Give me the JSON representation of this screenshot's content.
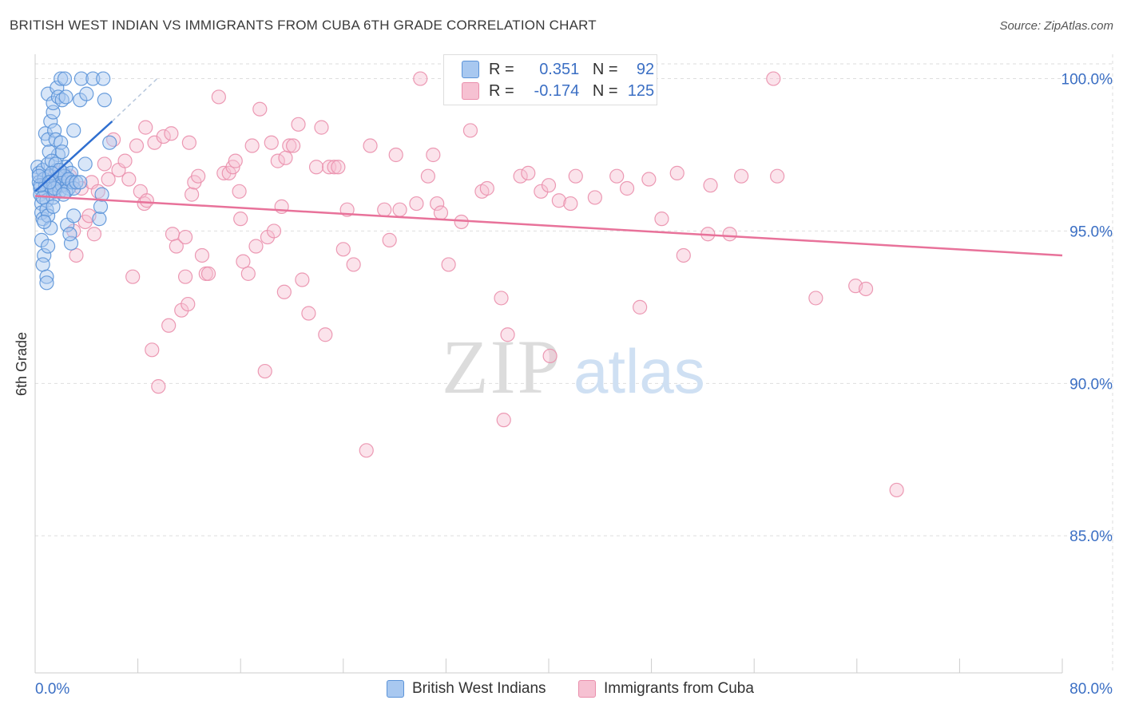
{
  "title": "BRITISH WEST INDIAN VS IMMIGRANTS FROM CUBA 6TH GRADE CORRELATION CHART",
  "source": "Source: ZipAtlas.com",
  "watermark": {
    "zip": "ZIP",
    "atlas": "atlas"
  },
  "colors": {
    "blue_fill": "#a8c8f0",
    "blue_stroke": "#5b93d8",
    "blue_line": "#2f6fd0",
    "pink_fill": "#f6c1d2",
    "pink_stroke": "#ea8fac",
    "pink_line": "#e8729a",
    "axis_label": "#3b6fc4",
    "grid": "#dedede"
  },
  "legend": {
    "rows": [
      {
        "r_label": "R =",
        "r_value": "0.351",
        "n_label": "N =",
        "n_value": "92",
        "series": "blue"
      },
      {
        "r_label": "R =",
        "r_value": "-0.174",
        "n_label": "N =",
        "n_value": "125",
        "series": "pink"
      }
    ]
  },
  "chart_data": {
    "type": "scatter",
    "title": "BRITISH WEST INDIAN VS IMMIGRANTS FROM CUBA 6TH GRADE CORRELATION CHART",
    "xlabel": "",
    "ylabel": "6th Grade",
    "xlim": [
      0,
      80
    ],
    "ylim": [
      80.5,
      100.8
    ],
    "x_tick_labels": [
      "0.0%",
      "80.0%"
    ],
    "y_ticks": [
      85,
      90,
      95,
      100
    ],
    "y_tick_labels": [
      "85.0%",
      "90.0%",
      "95.0%",
      "100.0%"
    ],
    "grid": true,
    "legend_position": "top-center",
    "series": [
      {
        "name": "British West Indians",
        "color": "blue",
        "r": 0.351,
        "n": 92,
        "trend": {
          "x": [
            0,
            6
          ],
          "y": [
            96.3,
            98.6
          ],
          "dashed_extension": {
            "x": [
              6,
              9.5
            ],
            "y": [
              98.6,
              100
            ]
          }
        },
        "points": [
          [
            0.2,
            97.1
          ],
          [
            0.3,
            96.9
          ],
          [
            0.3,
            96.6
          ],
          [
            0.4,
            96.4
          ],
          [
            0.4,
            96.2
          ],
          [
            0.5,
            95.9
          ],
          [
            0.5,
            95.6
          ],
          [
            0.6,
            95.4
          ],
          [
            0.6,
            97.0
          ],
          [
            0.7,
            96.7
          ],
          [
            0.8,
            96.5
          ],
          [
            0.8,
            96.3
          ],
          [
            0.9,
            96.0
          ],
          [
            0.9,
            95.7
          ],
          [
            1.0,
            95.5
          ],
          [
            1.0,
            97.2
          ],
          [
            1.1,
            96.8
          ],
          [
            1.2,
            96.6
          ],
          [
            1.3,
            96.4
          ],
          [
            1.4,
            96.1
          ],
          [
            0.5,
            94.7
          ],
          [
            0.7,
            94.2
          ],
          [
            0.6,
            93.9
          ],
          [
            0.9,
            93.5
          ],
          [
            0.9,
            93.3
          ],
          [
            1.0,
            94.5
          ],
          [
            1.2,
            95.1
          ],
          [
            1.4,
            95.8
          ],
          [
            1.5,
            96.3
          ],
          [
            1.6,
            96.7
          ],
          [
            1.7,
            97.0
          ],
          [
            1.8,
            96.5
          ],
          [
            1.9,
            96.3
          ],
          [
            2.0,
            96.8
          ],
          [
            2.1,
            96.5
          ],
          [
            2.2,
            96.9
          ],
          [
            2.4,
            97.1
          ],
          [
            2.5,
            96.6
          ],
          [
            2.6,
            96.4
          ],
          [
            2.8,
            96.9
          ],
          [
            0.8,
            98.2
          ],
          [
            1.0,
            98.0
          ],
          [
            1.2,
            98.6
          ],
          [
            1.4,
            98.9
          ],
          [
            1.5,
            98.3
          ],
          [
            1.6,
            98.0
          ],
          [
            1.8,
            97.5
          ],
          [
            2.0,
            97.9
          ],
          [
            2.1,
            97.6
          ],
          [
            2.3,
            96.8
          ],
          [
            1.1,
            97.6
          ],
          [
            1.3,
            97.3
          ],
          [
            1.6,
            97.2
          ],
          [
            1.9,
            97.0
          ],
          [
            2.4,
            96.3
          ],
          [
            2.6,
            96.7
          ],
          [
            2.9,
            96.6
          ],
          [
            3.0,
            96.4
          ],
          [
            3.2,
            96.6
          ],
          [
            3.5,
            96.6
          ],
          [
            1.0,
            99.5
          ],
          [
            1.4,
            99.2
          ],
          [
            1.7,
            99.7
          ],
          [
            1.8,
            99.4
          ],
          [
            2.0,
            100.0
          ],
          [
            2.1,
            99.3
          ],
          [
            2.3,
            100.0
          ],
          [
            2.4,
            99.4
          ],
          [
            3.5,
            99.3
          ],
          [
            3.6,
            100.0
          ],
          [
            4.0,
            99.5
          ],
          [
            4.5,
            100.0
          ],
          [
            5.3,
            100.0
          ],
          [
            5.4,
            99.3
          ],
          [
            3.9,
            97.2
          ],
          [
            3.0,
            98.3
          ],
          [
            2.5,
            95.2
          ],
          [
            2.8,
            94.6
          ],
          [
            2.7,
            94.9
          ],
          [
            3.0,
            95.5
          ],
          [
            5.0,
            95.4
          ],
          [
            5.1,
            95.8
          ],
          [
            5.2,
            96.2
          ],
          [
            5.8,
            97.9
          ],
          [
            1.3,
            96.9
          ],
          [
            0.6,
            96.1
          ],
          [
            0.4,
            96.5
          ],
          [
            0.3,
            96.8
          ],
          [
            0.7,
            95.3
          ],
          [
            1.5,
            96.4
          ],
          [
            2.2,
            96.2
          ],
          [
            1.1,
            96.6
          ]
        ]
      },
      {
        "name": "Immigrants from Cuba",
        "color": "pink",
        "r": -0.174,
        "n": 125,
        "trend": {
          "x": [
            0,
            80
          ],
          "y": [
            96.15,
            94.2
          ]
        },
        "points": [
          [
            1.0,
            96.6
          ],
          [
            1.3,
            96.4
          ],
          [
            1.6,
            96.9
          ],
          [
            2.0,
            96.5
          ],
          [
            2.4,
            96.7
          ],
          [
            2.7,
            96.8
          ],
          [
            3.0,
            95.0
          ],
          [
            3.2,
            94.2
          ],
          [
            3.6,
            96.4
          ],
          [
            3.9,
            95.3
          ],
          [
            4.2,
            95.5
          ],
          [
            4.4,
            96.6
          ],
          [
            4.6,
            94.9
          ],
          [
            4.9,
            96.3
          ],
          [
            5.4,
            97.2
          ],
          [
            5.7,
            96.7
          ],
          [
            6.1,
            98.0
          ],
          [
            6.5,
            97.0
          ],
          [
            7.0,
            97.3
          ],
          [
            7.3,
            96.7
          ],
          [
            7.6,
            93.5
          ],
          [
            7.9,
            97.8
          ],
          [
            8.2,
            96.3
          ],
          [
            8.5,
            95.9
          ],
          [
            8.7,
            96.0
          ],
          [
            8.6,
            98.4
          ],
          [
            9.1,
            91.1
          ],
          [
            9.3,
            97.9
          ],
          [
            9.6,
            89.9
          ],
          [
            10.0,
            98.1
          ],
          [
            10.4,
            91.9
          ],
          [
            10.6,
            98.2
          ],
          [
            10.7,
            94.9
          ],
          [
            11.0,
            94.5
          ],
          [
            11.4,
            92.4
          ],
          [
            11.7,
            93.5
          ],
          [
            11.9,
            92.6
          ],
          [
            12.2,
            96.2
          ],
          [
            12.4,
            96.6
          ],
          [
            12.7,
            96.8
          ],
          [
            13.0,
            94.2
          ],
          [
            13.3,
            93.6
          ],
          [
            13.5,
            93.6
          ],
          [
            12.0,
            97.9
          ],
          [
            14.3,
            99.4
          ],
          [
            14.7,
            96.9
          ],
          [
            15.1,
            96.9
          ],
          [
            15.4,
            97.1
          ],
          [
            15.6,
            97.3
          ],
          [
            15.9,
            96.3
          ],
          [
            16.2,
            94.0
          ],
          [
            16.6,
            93.6
          ],
          [
            16.9,
            97.8
          ],
          [
            17.2,
            94.5
          ],
          [
            17.5,
            99.0
          ],
          [
            17.9,
            90.4
          ],
          [
            18.1,
            94.8
          ],
          [
            18.4,
            97.9
          ],
          [
            18.6,
            95.0
          ],
          [
            18.9,
            97.3
          ],
          [
            19.2,
            95.8
          ],
          [
            19.4,
            93.0
          ],
          [
            19.8,
            97.8
          ],
          [
            20.1,
            97.8
          ],
          [
            20.5,
            98.5
          ],
          [
            20.8,
            93.4
          ],
          [
            21.3,
            92.3
          ],
          [
            21.9,
            97.1
          ],
          [
            22.3,
            98.4
          ],
          [
            22.6,
            91.6
          ],
          [
            22.9,
            97.1
          ],
          [
            23.3,
            97.1
          ],
          [
            23.6,
            97.1
          ],
          [
            24.0,
            94.4
          ],
          [
            24.3,
            95.7
          ],
          [
            24.8,
            93.9
          ],
          [
            26.1,
            97.8
          ],
          [
            27.2,
            95.7
          ],
          [
            27.6,
            94.7
          ],
          [
            28.1,
            97.5
          ],
          [
            28.4,
            95.7
          ],
          [
            29.7,
            95.9
          ],
          [
            30.0,
            100.0
          ],
          [
            30.6,
            96.8
          ],
          [
            31.0,
            97.5
          ],
          [
            31.3,
            95.9
          ],
          [
            31.6,
            95.6
          ],
          [
            32.2,
            93.9
          ],
          [
            33.2,
            95.3
          ],
          [
            33.9,
            98.3
          ],
          [
            34.8,
            96.3
          ],
          [
            35.2,
            96.4
          ],
          [
            36.3,
            92.8
          ],
          [
            36.8,
            91.6
          ],
          [
            36.5,
            88.8
          ],
          [
            37.8,
            96.8
          ],
          [
            38.4,
            96.9
          ],
          [
            39.4,
            96.3
          ],
          [
            40.0,
            96.5
          ],
          [
            40.1,
            90.9
          ],
          [
            40.8,
            96.0
          ],
          [
            41.7,
            95.9
          ],
          [
            42.1,
            96.8
          ],
          [
            43.6,
            96.1
          ],
          [
            45.3,
            96.8
          ],
          [
            46.1,
            96.4
          ],
          [
            47.1,
            92.5
          ],
          [
            47.8,
            96.7
          ],
          [
            48.8,
            95.4
          ],
          [
            50.0,
            96.9
          ],
          [
            50.5,
            94.2
          ],
          [
            52.4,
            94.9
          ],
          [
            52.6,
            96.5
          ],
          [
            54.1,
            94.9
          ],
          [
            55.0,
            96.8
          ],
          [
            57.5,
            100.0
          ],
          [
            57.8,
            96.8
          ],
          [
            60.8,
            92.8
          ],
          [
            63.9,
            93.2
          ],
          [
            64.7,
            93.1
          ],
          [
            67.1,
            86.5
          ],
          [
            25.8,
            87.8
          ],
          [
            16.0,
            95.4
          ],
          [
            19.5,
            97.4
          ],
          [
            11.7,
            94.8
          ]
        ]
      }
    ]
  },
  "bottom_legend": [
    {
      "label": "British West Indians",
      "color": "blue"
    },
    {
      "label": "Immigrants from Cuba",
      "color": "pink"
    }
  ]
}
